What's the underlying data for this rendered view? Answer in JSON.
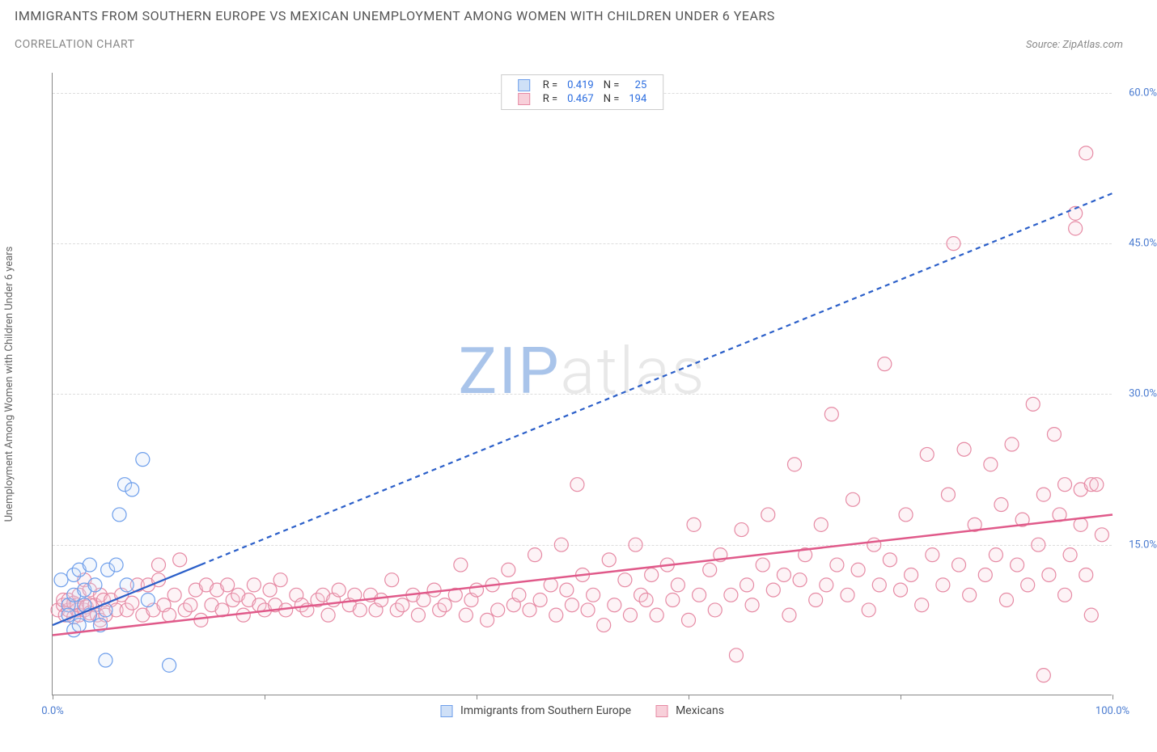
{
  "header": {
    "title": "IMMIGRANTS FROM SOUTHERN EUROPE VS MEXICAN UNEMPLOYMENT AMONG WOMEN WITH CHILDREN UNDER 6 YEARS",
    "subtitle": "CORRELATION CHART",
    "source": "Source: ZipAtlas.com"
  },
  "chart": {
    "type": "scatter",
    "background_color": "#ffffff",
    "grid_color": "#dddddd",
    "axis_color": "#888888",
    "marker_radius": 8.5,
    "marker_stroke_width": 1.2,
    "marker_fill_opacity": 0.25,
    "ylabel": "Unemployment Among Women with Children Under 6 years",
    "label_fontsize": 13,
    "xlim": [
      0,
      100
    ],
    "ylim": [
      0,
      62
    ],
    "xticks": [
      0,
      20,
      40,
      60,
      80,
      100
    ],
    "xtick_labels_shown": {
      "0": "0.0%",
      "100": "100.0%"
    },
    "yticks": [
      15,
      30,
      45,
      60
    ],
    "ytick_labels": [
      "15.0%",
      "30.0%",
      "45.0%",
      "60.0%"
    ],
    "watermark": {
      "text_bold": "ZIP",
      "text_light": "atlas",
      "color_bold": "#a9c4ea",
      "color_light": "#e8e8e8"
    },
    "legend_top": {
      "r_label": "R =",
      "n_label": "N =",
      "rows": [
        {
          "swatch_fill": "#cfe0f7",
          "swatch_stroke": "#6d9eeb",
          "r": "0.419",
          "n": "25"
        },
        {
          "swatch_fill": "#f8d0da",
          "swatch_stroke": "#e68aa4",
          "r": "0.467",
          "n": "194"
        }
      ]
    },
    "legend_bottom": [
      {
        "swatch_fill": "#cfe0f7",
        "swatch_stroke": "#6d9eeb",
        "label": "Immigrants from Southern Europe"
      },
      {
        "swatch_fill": "#f8d0da",
        "swatch_stroke": "#e68aa4",
        "label": "Mexicans"
      }
    ],
    "series": {
      "southern_europe": {
        "stroke": "#6d9eeb",
        "fill": "#cfe0f7",
        "trend": {
          "color": "#2b5fc9",
          "width": 2.2,
          "solid_until_x": 14,
          "y_at_x0": 7,
          "y_at_x100": 50
        },
        "points": [
          [
            0.8,
            11.5
          ],
          [
            1.5,
            9
          ],
          [
            1.5,
            8
          ],
          [
            2,
            10
          ],
          [
            2,
            6.5
          ],
          [
            2,
            12
          ],
          [
            2.5,
            7
          ],
          [
            2.5,
            12.5
          ],
          [
            3,
            9
          ],
          [
            3,
            10.5
          ],
          [
            3.5,
            8
          ],
          [
            3.5,
            13
          ],
          [
            4,
            11
          ],
          [
            4.5,
            7
          ],
          [
            5,
            8.5
          ],
          [
            5,
            3.5
          ],
          [
            5.2,
            12.5
          ],
          [
            6,
            13
          ],
          [
            6.3,
            18
          ],
          [
            6.8,
            21
          ],
          [
            7,
            11
          ],
          [
            7.5,
            20.5
          ],
          [
            8.5,
            23.5
          ],
          [
            9,
            9.5
          ],
          [
            11,
            3
          ]
        ]
      },
      "mexicans": {
        "stroke": "#e68aa4",
        "fill": "#f8d0da",
        "trend": {
          "color": "#e05a8a",
          "width": 2.5,
          "y_at_x0": 6,
          "y_at_x100": 18
        },
        "points": [
          [
            0.5,
            8.5
          ],
          [
            1,
            9
          ],
          [
            1,
            9.5
          ],
          [
            1.2,
            8
          ],
          [
            1.5,
            8.5
          ],
          [
            1.5,
            9.5
          ],
          [
            2,
            7.8
          ],
          [
            2,
            9.2
          ],
          [
            2.3,
            8.5
          ],
          [
            2.3,
            9
          ],
          [
            2.5,
            10
          ],
          [
            2.5,
            8
          ],
          [
            3,
            8.5
          ],
          [
            3,
            11.5
          ],
          [
            3.2,
            8.8
          ],
          [
            3.5,
            9
          ],
          [
            3.5,
            8.2
          ],
          [
            3.5,
            10.5
          ],
          [
            4,
            9
          ],
          [
            4.2,
            8
          ],
          [
            4.5,
            10
          ],
          [
            4.5,
            7.5
          ],
          [
            4.8,
            9.5
          ],
          [
            5,
            8
          ],
          [
            5.5,
            9.5
          ],
          [
            6,
            8.5
          ],
          [
            6.5,
            10
          ],
          [
            7,
            8.5
          ],
          [
            7.5,
            9.2
          ],
          [
            8,
            11
          ],
          [
            8.5,
            8
          ],
          [
            9,
            11
          ],
          [
            9.5,
            8.5
          ],
          [
            10,
            11.5
          ],
          [
            10,
            13
          ],
          [
            10.5,
            9
          ],
          [
            11,
            8
          ],
          [
            11.5,
            10
          ],
          [
            12,
            13.5
          ],
          [
            12.5,
            8.5
          ],
          [
            13,
            9
          ],
          [
            13.5,
            10.5
          ],
          [
            14,
            7.5
          ],
          [
            14.5,
            11
          ],
          [
            15,
            9
          ],
          [
            15.5,
            10.5
          ],
          [
            16,
            8.5
          ],
          [
            16.5,
            11
          ],
          [
            17,
            9.5
          ],
          [
            17.5,
            10
          ],
          [
            18,
            8
          ],
          [
            18.5,
            9.5
          ],
          [
            19,
            11
          ],
          [
            19.5,
            9
          ],
          [
            20,
            8.5
          ],
          [
            20.5,
            10.5
          ],
          [
            21,
            9
          ],
          [
            21.5,
            11.5
          ],
          [
            22,
            8.5
          ],
          [
            23,
            10
          ],
          [
            23.5,
            9
          ],
          [
            24,
            8.5
          ],
          [
            25,
            9.5
          ],
          [
            25.5,
            10
          ],
          [
            26,
            8
          ],
          [
            26.5,
            9.5
          ],
          [
            27,
            10.5
          ],
          [
            28,
            9
          ],
          [
            28.5,
            10
          ],
          [
            29,
            8.5
          ],
          [
            30,
            10
          ],
          [
            30.5,
            8.5
          ],
          [
            31,
            9.5
          ],
          [
            32,
            11.5
          ],
          [
            32.5,
            8.5
          ],
          [
            33,
            9
          ],
          [
            34,
            10
          ],
          [
            34.5,
            8
          ],
          [
            35,
            9.5
          ],
          [
            36,
            10.5
          ],
          [
            36.5,
            8.5
          ],
          [
            37,
            9
          ],
          [
            38,
            10
          ],
          [
            38.5,
            13
          ],
          [
            39,
            8
          ],
          [
            39.5,
            9.5
          ],
          [
            40,
            10.5
          ],
          [
            41,
            7.5
          ],
          [
            41.5,
            11
          ],
          [
            42,
            8.5
          ],
          [
            43,
            12.5
          ],
          [
            43.5,
            9
          ],
          [
            44,
            10
          ],
          [
            45,
            8.5
          ],
          [
            45.5,
            14
          ],
          [
            46,
            9.5
          ],
          [
            47,
            11
          ],
          [
            47.5,
            8
          ],
          [
            48,
            15
          ],
          [
            48.5,
            10.5
          ],
          [
            49,
            9
          ],
          [
            49.5,
            21
          ],
          [
            50,
            12
          ],
          [
            50.5,
            8.5
          ],
          [
            51,
            10
          ],
          [
            52,
            7
          ],
          [
            52.5,
            13.5
          ],
          [
            53,
            9
          ],
          [
            54,
            11.5
          ],
          [
            54.5,
            8
          ],
          [
            55,
            15
          ],
          [
            55.5,
            10
          ],
          [
            56,
            9.5
          ],
          [
            56.5,
            12
          ],
          [
            57,
            8
          ],
          [
            58,
            13
          ],
          [
            58.5,
            9.5
          ],
          [
            59,
            11
          ],
          [
            60,
            7.5
          ],
          [
            60.5,
            17
          ],
          [
            61,
            10
          ],
          [
            62,
            12.5
          ],
          [
            62.5,
            8.5
          ],
          [
            63,
            14
          ],
          [
            64,
            10
          ],
          [
            64.5,
            4
          ],
          [
            65,
            16.5
          ],
          [
            65.5,
            11
          ],
          [
            66,
            9
          ],
          [
            67,
            13
          ],
          [
            67.5,
            18
          ],
          [
            68,
            10.5
          ],
          [
            69,
            12
          ],
          [
            69.5,
            8
          ],
          [
            70,
            23
          ],
          [
            70.5,
            11.5
          ],
          [
            71,
            14
          ],
          [
            72,
            9.5
          ],
          [
            72.5,
            17
          ],
          [
            73,
            11
          ],
          [
            73.5,
            28
          ],
          [
            74,
            13
          ],
          [
            75,
            10
          ],
          [
            75.5,
            19.5
          ],
          [
            76,
            12.5
          ],
          [
            77,
            8.5
          ],
          [
            77.5,
            15
          ],
          [
            78,
            11
          ],
          [
            78.5,
            33
          ],
          [
            79,
            13.5
          ],
          [
            80,
            10.5
          ],
          [
            80.5,
            18
          ],
          [
            81,
            12
          ],
          [
            82,
            9
          ],
          [
            82.5,
            24
          ],
          [
            83,
            14
          ],
          [
            84,
            11
          ],
          [
            84.5,
            20
          ],
          [
            85,
            45
          ],
          [
            85.5,
            13
          ],
          [
            86,
            24.5
          ],
          [
            86.5,
            10
          ],
          [
            87,
            17
          ],
          [
            88,
            12
          ],
          [
            88.5,
            23
          ],
          [
            89,
            14
          ],
          [
            89.5,
            19
          ],
          [
            90,
            9.5
          ],
          [
            90.5,
            25
          ],
          [
            91,
            13
          ],
          [
            91.5,
            17.5
          ],
          [
            92,
            11
          ],
          [
            92.5,
            29
          ],
          [
            93,
            15
          ],
          [
            93.5,
            20
          ],
          [
            93.5,
            2
          ],
          [
            94,
            12
          ],
          [
            94.5,
            26
          ],
          [
            95,
            18
          ],
          [
            95.5,
            10
          ],
          [
            95.5,
            21
          ],
          [
            96,
            14
          ],
          [
            96.5,
            48
          ],
          [
            96.5,
            46.5
          ],
          [
            97,
            20.5
          ],
          [
            97,
            17
          ],
          [
            97.5,
            12
          ],
          [
            97.5,
            54
          ],
          [
            98,
            21
          ],
          [
            98,
            8
          ],
          [
            98.5,
            21
          ],
          [
            99,
            16
          ]
        ]
      }
    }
  }
}
